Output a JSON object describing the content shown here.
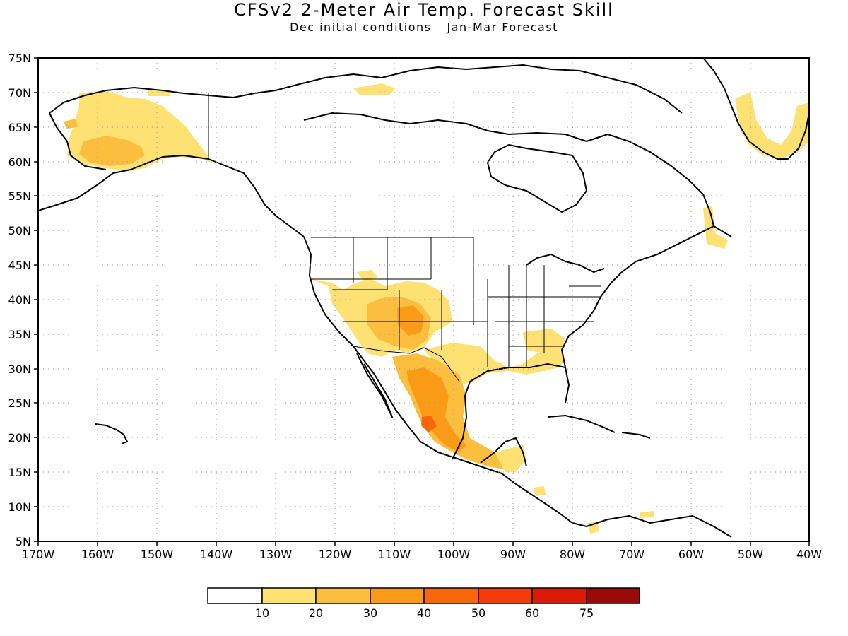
{
  "title": "CFSv2 2-Meter Air Temp. Forecast Skill",
  "subtitle": {
    "initial": "Dec initial conditions",
    "forecast": "Jan-Mar Forecast"
  },
  "axes": {
    "lat_labels": [
      "75N",
      "70N",
      "65N",
      "60N",
      "55N",
      "50N",
      "45N",
      "40N",
      "35N",
      "30N",
      "25N",
      "20N",
      "15N",
      "10N",
      "5N"
    ],
    "lon_labels": [
      "170W",
      "160W",
      "150W",
      "140W",
      "130W",
      "120W",
      "110W",
      "100W",
      "90W",
      "80W",
      "70W",
      "60W",
      "50W",
      "40W"
    ],
    "lat_range": [
      5,
      75
    ],
    "lon_range": [
      -170,
      -40
    ],
    "grid": "dotted"
  },
  "colorbar": {
    "colors": [
      "#ffffff",
      "#fde172",
      "#fbbe3f",
      "#f99b16",
      "#f8660c",
      "#f33c07",
      "#d91b06",
      "#9b0a0a"
    ],
    "labels": [
      "10",
      "20",
      "30",
      "40",
      "50",
      "60",
      "75"
    ]
  }
}
